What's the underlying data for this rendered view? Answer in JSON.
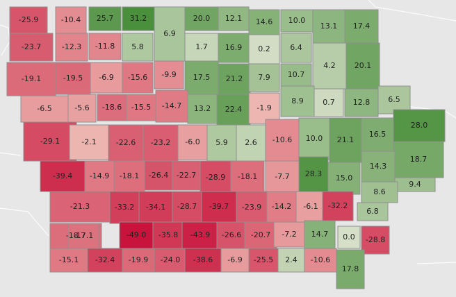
{
  "map": {
    "color_scale": {
      "negative_max": "#c8143c",
      "neutral": "#d9d4c8",
      "positive_max": "#4a8f3c"
    },
    "counties": [
      {
        "value": "-25.9",
        "v": -25.9
      },
      {
        "value": "-10.4",
        "v": -10.4
      },
      {
        "value": "25.7",
        "v": 25.7
      },
      {
        "value": "31.2",
        "v": 31.2
      },
      {
        "value": "6.9",
        "v": 6.9
      },
      {
        "value": "20.0",
        "v": 20.0
      },
      {
        "value": "12.1",
        "v": 12.1
      },
      {
        "value": "14.6",
        "v": 14.6
      },
      {
        "value": "10.0",
        "v": 10.0
      },
      {
        "value": "13.1",
        "v": 13.1
      },
      {
        "value": "17.4",
        "v": 17.4
      },
      {
        "value": "-23.7",
        "v": -23.7
      },
      {
        "value": "-12.3",
        "v": -12.3
      },
      {
        "value": "-11.8",
        "v": -11.8
      },
      {
        "value": "5.8",
        "v": 5.8
      },
      {
        "value": "1.7",
        "v": 1.7
      },
      {
        "value": "16.9",
        "v": 16.9
      },
      {
        "value": "0.2",
        "v": 0.2
      },
      {
        "value": "6.4",
        "v": 6.4
      },
      {
        "value": "4.2",
        "v": 4.2
      },
      {
        "value": "20.1",
        "v": 20.1
      },
      {
        "value": "-19.1",
        "v": -19.1
      },
      {
        "value": "-19.5",
        "v": -19.5
      },
      {
        "value": "-6.9",
        "v": -6.9
      },
      {
        "value": "-15.6",
        "v": -15.6
      },
      {
        "value": "-9.9",
        "v": -9.9
      },
      {
        "value": "17.5",
        "v": 17.5
      },
      {
        "value": "21.2",
        "v": 21.2
      },
      {
        "value": "7.9",
        "v": 7.9
      },
      {
        "value": "10.7",
        "v": 10.7
      },
      {
        "value": "-6.5",
        "v": -6.5
      },
      {
        "value": "-5.6",
        "v": -5.6
      },
      {
        "value": "-18.6",
        "v": -18.6
      },
      {
        "value": "-15.5",
        "v": -15.5
      },
      {
        "value": "-14.7",
        "v": -14.7
      },
      {
        "value": "13.2",
        "v": 13.2
      },
      {
        "value": "22.4",
        "v": 22.4
      },
      {
        "value": "-1.9",
        "v": -1.9
      },
      {
        "value": "8.9",
        "v": 8.9
      },
      {
        "value": "0.7",
        "v": 0.7
      },
      {
        "value": "12.8",
        "v": 12.8
      },
      {
        "value": "6.5",
        "v": 6.5
      },
      {
        "value": "-29.1",
        "v": -29.1
      },
      {
        "value": "-2.1",
        "v": -2.1
      },
      {
        "value": "-22.6",
        "v": -22.6
      },
      {
        "value": "-23.2",
        "v": -23.2
      },
      {
        "value": "-6.0",
        "v": -6.0
      },
      {
        "value": "5.9",
        "v": 5.9
      },
      {
        "value": "2.6",
        "v": 2.6
      },
      {
        "value": "-10.6",
        "v": -10.6
      },
      {
        "value": "10.0",
        "v": 10.0
      },
      {
        "value": "21.1",
        "v": 21.1
      },
      {
        "value": "16.5",
        "v": 16.5
      },
      {
        "value": "28.0",
        "v": 28.0
      },
      {
        "value": "18.7",
        "v": 18.7
      },
      {
        "value": "14.3",
        "v": 14.3
      },
      {
        "value": "-39.4",
        "v": -39.4
      },
      {
        "value": "-14.9",
        "v": -14.9
      },
      {
        "value": "-18.1",
        "v": -18.1
      },
      {
        "value": "-26.4",
        "v": -26.4
      },
      {
        "value": "-22.7",
        "v": -22.7
      },
      {
        "value": "-28.9",
        "v": -28.9
      },
      {
        "value": "-18.1",
        "v": -18.1
      },
      {
        "value": "-7.7",
        "v": -7.7
      },
      {
        "value": "28.3",
        "v": 28.3
      },
      {
        "value": "15.0",
        "v": 15.0
      },
      {
        "value": "9.4",
        "v": 9.4
      },
      {
        "value": "8.6",
        "v": 8.6
      },
      {
        "value": "-21.3",
        "v": -21.3
      },
      {
        "value": "-33.2",
        "v": -33.2
      },
      {
        "value": "-34.1",
        "v": -34.1
      },
      {
        "value": "-28.7",
        "v": -28.7
      },
      {
        "value": "-39.7",
        "v": -39.7
      },
      {
        "value": "-23.9",
        "v": -23.9
      },
      {
        "value": "-14.2",
        "v": -14.2
      },
      {
        "value": "-6.1",
        "v": -6.1
      },
      {
        "value": "-32.2",
        "v": -32.2
      },
      {
        "value": "6.8",
        "v": 6.8
      },
      {
        "value": "-18.7",
        "v": -18.7
      },
      {
        "value": "-17.1",
        "v": -17.1
      },
      {
        "value": "-49.0",
        "v": -49.0
      },
      {
        "value": "-35.8",
        "v": -35.8
      },
      {
        "value": "-43.9",
        "v": -43.9
      },
      {
        "value": "-26.6",
        "v": -26.6
      },
      {
        "value": "-20.7",
        "v": -20.7
      },
      {
        "value": "-7.2",
        "v": -7.2
      },
      {
        "value": "14.7",
        "v": 14.7
      },
      {
        "value": "0.0",
        "v": 0.0
      },
      {
        "value": "-28.8",
        "v": -28.8
      },
      {
        "value": "-15.1",
        "v": -15.1
      },
      {
        "value": "-32.4",
        "v": -32.4
      },
      {
        "value": "-19.9",
        "v": -19.9
      },
      {
        "value": "-24.0",
        "v": -24.0
      },
      {
        "value": "-38.6",
        "v": -38.6
      },
      {
        "value": "-6.9",
        "v": -6.9
      },
      {
        "value": "-25.5",
        "v": -25.5
      },
      {
        "value": "2.4",
        "v": 2.4
      },
      {
        "value": "-10.6",
        "v": -10.6
      },
      {
        "value": "17.8",
        "v": 17.8
      }
    ]
  }
}
